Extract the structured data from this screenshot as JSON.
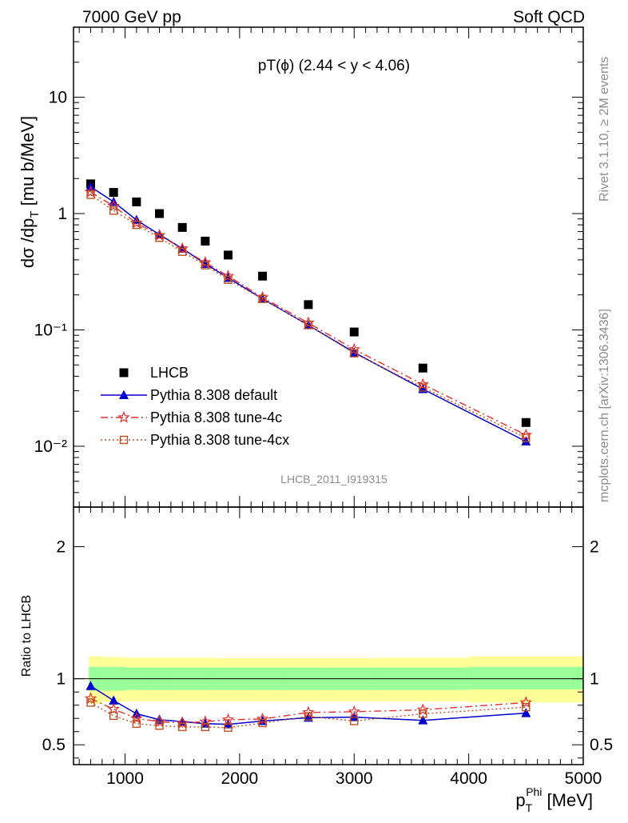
{
  "header": {
    "left": "7000 GeV pp",
    "right": "Soft QCD"
  },
  "side_texts": {
    "rivet": "Rivet 3.1.10, ≥ 2M events",
    "mcplots": "mcplots.cern.ch [arXiv:1306.3436]"
  },
  "chart_data": [
    {
      "type": "line",
      "panel": "main",
      "title": "pT(ϕ) (2.44 < y < 4.06)",
      "ylabel": "dσ /dp_T [mu b/MeV]",
      "watermark": "LHCB_2011_I919315",
      "xlim": [
        550,
        5000
      ],
      "ylim": [
        0.003,
        40
      ],
      "yscale": "log",
      "ytick_labels": [
        "10⁻²",
        "10⁻¹",
        "1",
        "10"
      ],
      "ytick_values": [
        0.01,
        0.1,
        1,
        10
      ],
      "legend_position": "center-left",
      "x": [
        700,
        900,
        1100,
        1300,
        1500,
        1700,
        1900,
        2200,
        2600,
        3000,
        3600,
        4500
      ],
      "series": [
        {
          "name": "LHCB",
          "marker": "filled-square",
          "color": "#000000",
          "values": [
            1.8,
            1.52,
            1.26,
            1.0,
            0.76,
            0.58,
            0.44,
            0.29,
            0.165,
            0.096,
            0.047,
            0.016
          ]
        },
        {
          "name": "Pythia 8.308 default",
          "marker": "filled-triangle",
          "color": "#0000cc",
          "values": [
            1.7,
            1.26,
            0.88,
            0.66,
            0.5,
            0.37,
            0.28,
            0.185,
            0.11,
            0.064,
            0.031,
            0.011
          ]
        },
        {
          "name": "Pythia 8.308 tune-4c",
          "marker": "open-star",
          "color": "#e03030",
          "values": [
            1.53,
            1.16,
            0.83,
            0.65,
            0.5,
            0.38,
            0.29,
            0.19,
            0.115,
            0.068,
            0.034,
            0.0125
          ]
        },
        {
          "name": "Pythia 8.308 tune-4cx",
          "marker": "open-square",
          "color": "#c05020",
          "values": [
            1.45,
            1.06,
            0.8,
            0.62,
            0.47,
            0.36,
            0.27,
            0.185,
            0.11,
            0.063,
            0.032,
            0.0118
          ]
        }
      ]
    },
    {
      "type": "line",
      "panel": "ratio",
      "ylabel": "Ratio to LHCB",
      "xlabel_main": "p",
      "xlabel_sup": "Phi",
      "xlabel_sub": "T",
      "xlabel_unit": " [MeV]",
      "xlim": [
        550,
        5000
      ],
      "ylim": [
        0.35,
        2.3
      ],
      "xticks": [
        1000,
        2000,
        3000,
        4000,
        5000
      ],
      "yticks": [
        0.5,
        1,
        2
      ],
      "reference_line": 1,
      "bands": {
        "edges": [
          600,
          800,
          1000,
          1200,
          1400,
          1600,
          1800,
          2000,
          2400,
          2800,
          3200,
          4000,
          5000
        ],
        "inner_low": [
          0.91,
          0.91,
          0.915,
          0.915,
          0.915,
          0.915,
          0.915,
          0.915,
          0.915,
          0.915,
          0.915,
          0.92
        ],
        "inner_high": [
          1.09,
          1.09,
          1.085,
          1.085,
          1.085,
          1.085,
          1.085,
          1.085,
          1.085,
          1.085,
          1.085,
          1.09
        ],
        "outer_low": [
          0.81,
          0.825,
          0.83,
          0.83,
          0.83,
          0.83,
          0.83,
          0.83,
          0.83,
          0.83,
          0.83,
          0.82
        ],
        "outer_high": [
          1.17,
          1.165,
          1.16,
          1.16,
          1.16,
          1.16,
          1.155,
          1.155,
          1.155,
          1.155,
          1.16,
          1.17
        ]
      },
      "x": [
        700,
        900,
        1100,
        1300,
        1500,
        1700,
        1900,
        2200,
        2600,
        3000,
        3600,
        4500
      ],
      "series": [
        {
          "name": "Pythia 8.308 default",
          "marker": "filled-triangle",
          "color": "#0000cc",
          "values": [
            0.945,
            0.835,
            0.735,
            0.69,
            0.675,
            0.66,
            0.655,
            0.68,
            0.705,
            0.71,
            0.685,
            0.74
          ]
        },
        {
          "name": "Pythia 8.308 tune-4c",
          "marker": "open-star",
          "color": "#e03030",
          "values": [
            0.85,
            0.77,
            0.7,
            0.675,
            0.665,
            0.675,
            0.69,
            0.695,
            0.745,
            0.75,
            0.765,
            0.82
          ]
        },
        {
          "name": "Pythia 8.308 tune-4cx",
          "marker": "open-square",
          "color": "#c05020",
          "values": [
            0.82,
            0.72,
            0.66,
            0.645,
            0.635,
            0.635,
            0.63,
            0.665,
            0.715,
            0.68,
            0.735,
            0.785
          ]
        }
      ]
    }
  ]
}
